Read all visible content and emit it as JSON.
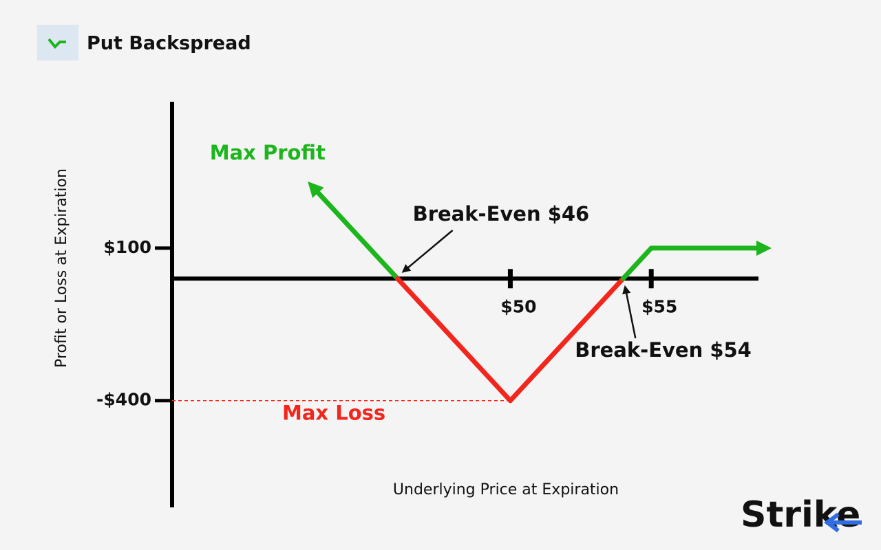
{
  "header": {
    "title": "Put Backspread"
  },
  "brand": "Strike",
  "chart_data": {
    "type": "line",
    "y_label": "Profit or Loss at Expiration",
    "x_label": "Underlying Price at Expiration",
    "x": [
      43,
      46,
      50,
      54,
      55,
      59
    ],
    "values": [
      300,
      0,
      -400,
      0,
      100,
      100
    ],
    "profit_color": "#1cb51c",
    "loss_color": "#f2261c",
    "xlim": [
      38,
      59
    ],
    "ylim": [
      -750,
      580
    ],
    "xticks": [
      {
        "value": 50,
        "label": "$50"
      },
      {
        "value": 55,
        "label": "$55"
      }
    ],
    "yticks": [
      {
        "value": 100,
        "label": "$100"
      },
      {
        "value": -400,
        "label": "-$400"
      }
    ],
    "annotations": {
      "max_profit": "Max Profit",
      "break_even_low": "Break-Even $46",
      "break_even_high": "Break-Even $54",
      "max_loss": "Max Loss"
    }
  }
}
